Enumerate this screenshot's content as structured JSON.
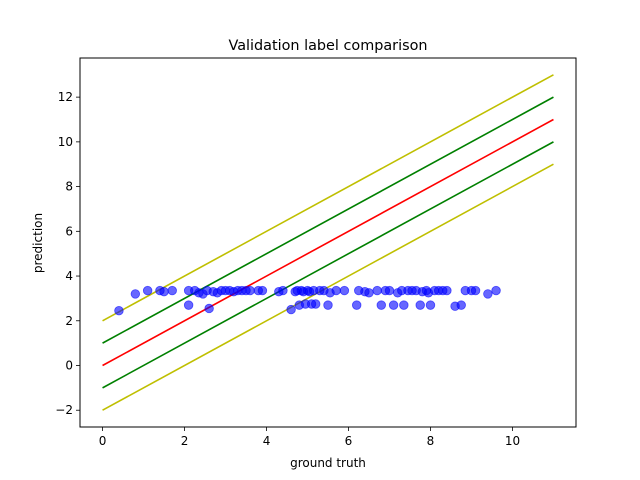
{
  "chart_data": {
    "type": "scatter",
    "title": "Validation label comparison",
    "xlabel": "ground truth",
    "ylabel": "prediction",
    "xlim": [
      -0.55,
      11.55
    ],
    "ylim": [
      -2.75,
      13.75
    ],
    "xticks": [
      0,
      2,
      4,
      6,
      8,
      10
    ],
    "yticks": [
      -2,
      0,
      2,
      4,
      6,
      8,
      10,
      12
    ],
    "xtick_labels": [
      "0",
      "2",
      "4",
      "6",
      "8",
      "10"
    ],
    "ytick_labels": [
      "−2",
      "0",
      "2",
      "4",
      "6",
      "8",
      "10",
      "12"
    ],
    "grid": false,
    "lines": [
      {
        "color": "#bfbf00",
        "points": [
          [
            0,
            2
          ],
          [
            11,
            13
          ]
        ]
      },
      {
        "color": "#008000",
        "points": [
          [
            0,
            1
          ],
          [
            11,
            12
          ]
        ]
      },
      {
        "color": "#ff0000",
        "points": [
          [
            0,
            0
          ],
          [
            11,
            11
          ]
        ]
      },
      {
        "color": "#008000",
        "points": [
          [
            0,
            -1
          ],
          [
            11,
            10
          ]
        ]
      },
      {
        "color": "#bfbf00",
        "points": [
          [
            0,
            -2
          ],
          [
            11,
            9
          ]
        ]
      }
    ],
    "series": [
      {
        "color": "#0000ff",
        "alpha": 0.6,
        "points": [
          [
            0.4,
            2.45
          ],
          [
            0.8,
            3.2
          ],
          [
            1.1,
            3.35
          ],
          [
            1.4,
            3.35
          ],
          [
            1.5,
            3.3
          ],
          [
            1.7,
            3.35
          ],
          [
            2.1,
            2.7
          ],
          [
            2.1,
            3.35
          ],
          [
            2.25,
            3.35
          ],
          [
            2.35,
            3.25
          ],
          [
            2.45,
            3.2
          ],
          [
            2.55,
            3.35
          ],
          [
            2.6,
            2.55
          ],
          [
            2.7,
            3.3
          ],
          [
            2.8,
            3.25
          ],
          [
            2.9,
            3.35
          ],
          [
            3.0,
            3.35
          ],
          [
            3.1,
            3.35
          ],
          [
            3.2,
            3.3
          ],
          [
            3.3,
            3.35
          ],
          [
            3.4,
            3.35
          ],
          [
            3.5,
            3.35
          ],
          [
            3.6,
            3.35
          ],
          [
            3.8,
            3.35
          ],
          [
            3.9,
            3.35
          ],
          [
            4.3,
            3.3
          ],
          [
            4.4,
            3.35
          ],
          [
            4.6,
            2.5
          ],
          [
            4.7,
            3.3
          ],
          [
            4.75,
            3.35
          ],
          [
            4.8,
            2.7
          ],
          [
            4.85,
            3.35
          ],
          [
            4.9,
            3.3
          ],
          [
            4.95,
            2.75
          ],
          [
            5.0,
            3.35
          ],
          [
            5.05,
            3.3
          ],
          [
            5.1,
            2.75
          ],
          [
            5.15,
            3.35
          ],
          [
            5.2,
            2.75
          ],
          [
            5.3,
            3.35
          ],
          [
            5.4,
            3.35
          ],
          [
            5.5,
            2.7
          ],
          [
            5.55,
            3.25
          ],
          [
            5.7,
            3.35
          ],
          [
            5.9,
            3.35
          ],
          [
            6.2,
            2.7
          ],
          [
            6.25,
            3.35
          ],
          [
            6.4,
            3.3
          ],
          [
            6.5,
            3.25
          ],
          [
            6.7,
            3.35
          ],
          [
            6.8,
            2.7
          ],
          [
            6.9,
            3.35
          ],
          [
            7.0,
            3.35
          ],
          [
            7.1,
            2.7
          ],
          [
            7.2,
            3.25
          ],
          [
            7.3,
            3.35
          ],
          [
            7.35,
            2.7
          ],
          [
            7.45,
            3.35
          ],
          [
            7.55,
            3.35
          ],
          [
            7.65,
            3.35
          ],
          [
            7.75,
            2.7
          ],
          [
            7.8,
            3.3
          ],
          [
            7.9,
            3.35
          ],
          [
            7.95,
            3.25
          ],
          [
            8.0,
            2.7
          ],
          [
            8.1,
            3.35
          ],
          [
            8.2,
            3.35
          ],
          [
            8.3,
            3.35
          ],
          [
            8.4,
            3.35
          ],
          [
            8.6,
            2.65
          ],
          [
            8.75,
            2.7
          ],
          [
            8.85,
            3.35
          ],
          [
            9.0,
            3.35
          ],
          [
            9.1,
            3.35
          ],
          [
            9.4,
            3.2
          ],
          [
            9.6,
            3.35
          ]
        ]
      }
    ]
  }
}
